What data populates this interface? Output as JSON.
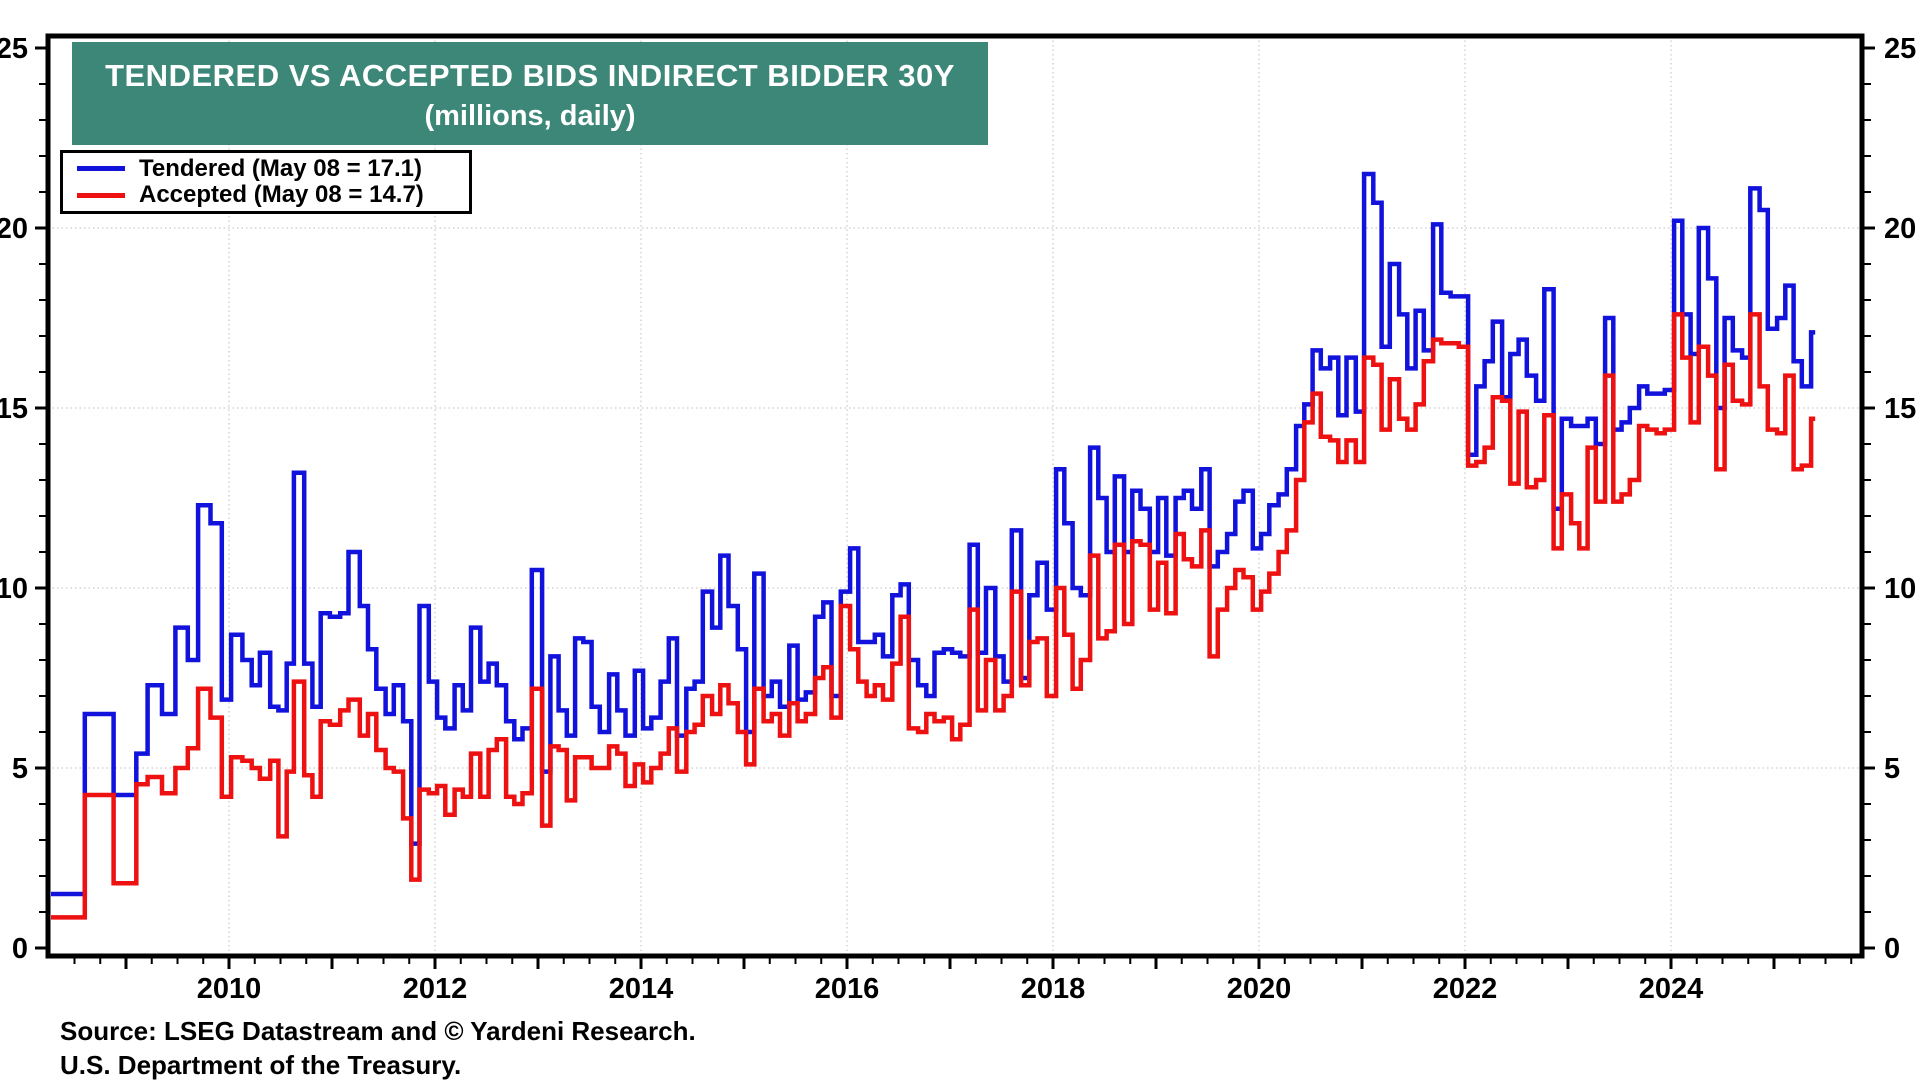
{
  "title": {
    "line1": "TENDERED VS ACCEPTED BIDS INDIRECT BIDDER 30Y",
    "line2": "(millions, daily)",
    "background_color": "#3D8778"
  },
  "legend": {
    "items": [
      {
        "label": "Tendered (May 08 = 17.1)",
        "color": "#1212DD"
      },
      {
        "label": "Accepted (May 08 = 14.7)",
        "color": "#EE1111"
      }
    ],
    "position": "top-left"
  },
  "source": {
    "line1": "Source: LSEG Datastream and © Yardeni Research.",
    "line2": "U.S. Department of the Treasury."
  },
  "chart_data": {
    "type": "line",
    "subtype": "step",
    "title": "TENDERED VS ACCEPTED BIDS INDIRECT BIDDER 30Y (millions, daily)",
    "xlabel": "",
    "ylabel": "millions",
    "x_range": [
      2008.25,
      2025.8
    ],
    "ylim": [
      0,
      25
    ],
    "y_ticks": [
      0,
      5,
      10,
      15,
      20,
      25
    ],
    "x_tick_labels": [
      "2010",
      "2012",
      "2014",
      "2016",
      "2018",
      "2020",
      "2022",
      "2024"
    ],
    "x_tick_years": [
      2010,
      2012,
      2014,
      2016,
      2018,
      2020,
      2022,
      2024
    ],
    "grid": "dotted-light",
    "legend_position": "top-left",
    "end_time": 2025.4,
    "series_names": [
      "Tendered",
      "Accepted"
    ],
    "latest": {
      "date_label": "May 08",
      "tendered": 17.1,
      "accepted": 14.7
    },
    "steps": [
      [
        2008.26,
        1.5,
        0.85
      ],
      [
        2008.6,
        6.5,
        4.25
      ],
      [
        2008.88,
        4.25,
        1.8
      ],
      [
        2009.1,
        5.4,
        4.55
      ],
      [
        2009.21,
        7.3,
        4.75
      ],
      [
        2009.35,
        6.5,
        4.3
      ],
      [
        2009.48,
        8.9,
        5.0
      ],
      [
        2009.6,
        8.0,
        5.55
      ],
      [
        2009.7,
        12.3,
        7.2
      ],
      [
        2009.82,
        11.8,
        6.4
      ],
      [
        2009.93,
        6.9,
        4.2
      ],
      [
        2010.02,
        8.7,
        5.3
      ],
      [
        2010.13,
        8.0,
        5.2
      ],
      [
        2010.22,
        7.3,
        5.0
      ],
      [
        2010.3,
        8.2,
        4.7
      ],
      [
        2010.4,
        6.7,
        5.2
      ],
      [
        2010.48,
        6.6,
        3.1
      ],
      [
        2010.56,
        7.9,
        4.9
      ],
      [
        2010.63,
        13.2,
        7.4
      ],
      [
        2010.73,
        7.9,
        4.8
      ],
      [
        2010.81,
        6.7,
        4.2
      ],
      [
        2010.89,
        9.3,
        6.3
      ],
      [
        2010.98,
        9.2,
        6.2
      ],
      [
        2011.08,
        9.3,
        6.6
      ],
      [
        2011.16,
        11.0,
        6.9
      ],
      [
        2011.27,
        9.5,
        5.9
      ],
      [
        2011.35,
        8.3,
        6.5
      ],
      [
        2011.43,
        7.2,
        5.5
      ],
      [
        2011.52,
        6.5,
        5.0
      ],
      [
        2011.6,
        7.3,
        4.9
      ],
      [
        2011.69,
        6.3,
        3.6
      ],
      [
        2011.77,
        2.9,
        1.9
      ],
      [
        2011.85,
        9.5,
        4.4
      ],
      [
        2011.94,
        7.4,
        4.3
      ],
      [
        2012.02,
        6.4,
        4.5
      ],
      [
        2012.1,
        6.1,
        3.7
      ],
      [
        2012.19,
        7.3,
        4.4
      ],
      [
        2012.27,
        6.6,
        4.2
      ],
      [
        2012.35,
        8.9,
        5.4
      ],
      [
        2012.44,
        7.4,
        4.2
      ],
      [
        2012.52,
        7.9,
        5.5
      ],
      [
        2012.6,
        7.3,
        5.8
      ],
      [
        2012.69,
        6.3,
        4.2
      ],
      [
        2012.77,
        5.8,
        4.0
      ],
      [
        2012.85,
        6.1,
        4.3
      ],
      [
        2012.94,
        10.5,
        7.2
      ],
      [
        2013.04,
        4.9,
        3.4
      ],
      [
        2013.12,
        8.1,
        5.6
      ],
      [
        2013.2,
        6.6,
        5.5
      ],
      [
        2013.28,
        5.9,
        4.1
      ],
      [
        2013.36,
        8.6,
        5.3
      ],
      [
        2013.44,
        8.5,
        5.3
      ],
      [
        2013.52,
        6.7,
        5.0
      ],
      [
        2013.6,
        6.0,
        5.0
      ],
      [
        2013.69,
        7.6,
        5.6
      ],
      [
        2013.77,
        6.6,
        5.4
      ],
      [
        2013.85,
        5.9,
        4.5
      ],
      [
        2013.94,
        7.7,
        5.1
      ],
      [
        2014.02,
        6.1,
        4.6
      ],
      [
        2014.1,
        6.4,
        5.0
      ],
      [
        2014.19,
        7.4,
        5.4
      ],
      [
        2014.27,
        8.6,
        6.1
      ],
      [
        2014.35,
        5.9,
        4.9
      ],
      [
        2014.44,
        7.2,
        6.0
      ],
      [
        2014.52,
        7.4,
        6.2
      ],
      [
        2014.6,
        9.9,
        7.0
      ],
      [
        2014.69,
        8.9,
        6.5
      ],
      [
        2014.77,
        10.9,
        7.3
      ],
      [
        2014.85,
        9.5,
        6.8
      ],
      [
        2014.94,
        8.3,
        6.0
      ],
      [
        2015.02,
        6.0,
        5.1
      ],
      [
        2015.1,
        10.4,
        7.2
      ],
      [
        2015.19,
        7.0,
        6.3
      ],
      [
        2015.27,
        7.4,
        6.5
      ],
      [
        2015.35,
        6.7,
        5.9
      ],
      [
        2015.44,
        8.4,
        6.8
      ],
      [
        2015.52,
        6.9,
        6.3
      ],
      [
        2015.6,
        7.1,
        6.5
      ],
      [
        2015.69,
        9.2,
        7.5
      ],
      [
        2015.77,
        9.6,
        7.8
      ],
      [
        2015.85,
        7.0,
        6.4
      ],
      [
        2015.94,
        9.9,
        9.5
      ],
      [
        2016.03,
        11.1,
        8.3
      ],
      [
        2016.11,
        8.5,
        7.4
      ],
      [
        2016.19,
        8.5,
        7.0
      ],
      [
        2016.27,
        8.7,
        7.3
      ],
      [
        2016.35,
        8.1,
        6.9
      ],
      [
        2016.44,
        9.8,
        7.9
      ],
      [
        2016.52,
        10.1,
        9.2
      ],
      [
        2016.6,
        8.0,
        6.1
      ],
      [
        2016.69,
        7.3,
        6.0
      ],
      [
        2016.77,
        7.0,
        6.5
      ],
      [
        2016.85,
        8.2,
        6.3
      ],
      [
        2016.94,
        8.3,
        6.4
      ],
      [
        2017.02,
        8.2,
        5.8
      ],
      [
        2017.1,
        8.1,
        6.2
      ],
      [
        2017.19,
        11.2,
        9.4
      ],
      [
        2017.27,
        8.2,
        6.6
      ],
      [
        2017.35,
        10.0,
        8.0
      ],
      [
        2017.44,
        8.1,
        6.6
      ],
      [
        2017.52,
        7.4,
        7.0
      ],
      [
        2017.6,
        11.6,
        9.9
      ],
      [
        2017.69,
        7.5,
        7.3
      ],
      [
        2017.77,
        9.8,
        8.5
      ],
      [
        2017.85,
        10.7,
        8.6
      ],
      [
        2017.94,
        9.4,
        7.0
      ],
      [
        2018.03,
        13.3,
        10.0
      ],
      [
        2018.11,
        11.8,
        8.7
      ],
      [
        2018.19,
        10.0,
        7.2
      ],
      [
        2018.27,
        9.8,
        8.0
      ],
      [
        2018.36,
        13.9,
        10.9
      ],
      [
        2018.44,
        12.5,
        8.6
      ],
      [
        2018.52,
        11.0,
        8.8
      ],
      [
        2018.6,
        13.1,
        11.2
      ],
      [
        2018.69,
        11.0,
        9.0
      ],
      [
        2018.77,
        12.7,
        11.3
      ],
      [
        2018.85,
        12.2,
        11.2
      ],
      [
        2018.94,
        11.0,
        9.4
      ],
      [
        2019.02,
        12.5,
        10.7
      ],
      [
        2019.1,
        10.9,
        9.3
      ],
      [
        2019.19,
        12.5,
        11.5
      ],
      [
        2019.27,
        12.7,
        10.8
      ],
      [
        2019.35,
        12.2,
        10.6
      ],
      [
        2019.44,
        13.3,
        11.6
      ],
      [
        2019.52,
        10.6,
        8.1
      ],
      [
        2019.6,
        11.0,
        9.4
      ],
      [
        2019.69,
        11.5,
        10.0
      ],
      [
        2019.77,
        12.4,
        10.5
      ],
      [
        2019.85,
        12.7,
        10.3
      ],
      [
        2019.94,
        11.1,
        9.4
      ],
      [
        2020.02,
        11.5,
        9.9
      ],
      [
        2020.1,
        12.3,
        10.4
      ],
      [
        2020.19,
        12.6,
        11.0
      ],
      [
        2020.27,
        13.3,
        11.6
      ],
      [
        2020.36,
        14.5,
        13.0
      ],
      [
        2020.44,
        15.1,
        14.6
      ],
      [
        2020.52,
        16.6,
        15.4
      ],
      [
        2020.6,
        16.1,
        14.2
      ],
      [
        2020.69,
        16.4,
        14.1
      ],
      [
        2020.77,
        14.8,
        13.5
      ],
      [
        2020.85,
        16.4,
        14.1
      ],
      [
        2020.94,
        14.9,
        13.5
      ],
      [
        2021.02,
        21.5,
        16.4
      ],
      [
        2021.11,
        20.7,
        16.2
      ],
      [
        2021.19,
        16.7,
        14.4
      ],
      [
        2021.27,
        19.0,
        15.8
      ],
      [
        2021.36,
        17.6,
        14.7
      ],
      [
        2021.44,
        16.1,
        14.4
      ],
      [
        2021.52,
        17.7,
        15.1
      ],
      [
        2021.6,
        16.6,
        16.3
      ],
      [
        2021.69,
        20.1,
        16.9
      ],
      [
        2021.77,
        18.2,
        16.8
      ],
      [
        2021.86,
        18.1,
        16.8
      ],
      [
        2021.94,
        18.1,
        16.7
      ],
      [
        2022.03,
        13.7,
        13.4
      ],
      [
        2022.11,
        15.6,
        13.5
      ],
      [
        2022.19,
        16.3,
        13.9
      ],
      [
        2022.27,
        17.4,
        15.3
      ],
      [
        2022.36,
        15.3,
        15.2
      ],
      [
        2022.44,
        16.5,
        12.9
      ],
      [
        2022.52,
        16.9,
        14.9
      ],
      [
        2022.6,
        15.9,
        12.8
      ],
      [
        2022.69,
        15.2,
        13.0
      ],
      [
        2022.77,
        18.3,
        14.8
      ],
      [
        2022.86,
        12.2,
        11.1
      ],
      [
        2022.94,
        14.7,
        12.6
      ],
      [
        2023.03,
        14.5,
        11.8
      ],
      [
        2023.11,
        14.5,
        11.1
      ],
      [
        2023.19,
        14.7,
        13.9
      ],
      [
        2023.27,
        14.0,
        12.4
      ],
      [
        2023.36,
        17.5,
        15.9
      ],
      [
        2023.44,
        14.4,
        12.4
      ],
      [
        2023.52,
        14.6,
        12.6
      ],
      [
        2023.6,
        15.0,
        13.0
      ],
      [
        2023.69,
        15.6,
        14.5
      ],
      [
        2023.77,
        15.4,
        14.4
      ],
      [
        2023.86,
        15.4,
        14.3
      ],
      [
        2023.94,
        15.5,
        14.4
      ],
      [
        2024.03,
        20.2,
        17.6
      ],
      [
        2024.11,
        17.6,
        16.4
      ],
      [
        2024.19,
        16.5,
        14.6
      ],
      [
        2024.27,
        20.0,
        16.7
      ],
      [
        2024.36,
        18.6,
        15.9
      ],
      [
        2024.44,
        15.0,
        13.3
      ],
      [
        2024.52,
        17.5,
        16.2
      ],
      [
        2024.6,
        16.6,
        15.2
      ],
      [
        2024.69,
        16.4,
        15.1
      ],
      [
        2024.77,
        21.1,
        17.6
      ],
      [
        2024.86,
        20.5,
        15.6
      ],
      [
        2024.94,
        17.2,
        14.4
      ],
      [
        2025.03,
        17.5,
        14.3
      ],
      [
        2025.11,
        18.4,
        15.9
      ],
      [
        2025.19,
        16.3,
        13.3
      ],
      [
        2025.27,
        15.6,
        13.4
      ],
      [
        2025.36,
        17.1,
        14.7
      ]
    ]
  },
  "colors": {
    "tendered": "#1212DD",
    "accepted": "#EE1111",
    "frame": "#000000",
    "grid": "#c9c9c9",
    "title_bg": "#3D8778",
    "title_text": "#ffffff"
  }
}
